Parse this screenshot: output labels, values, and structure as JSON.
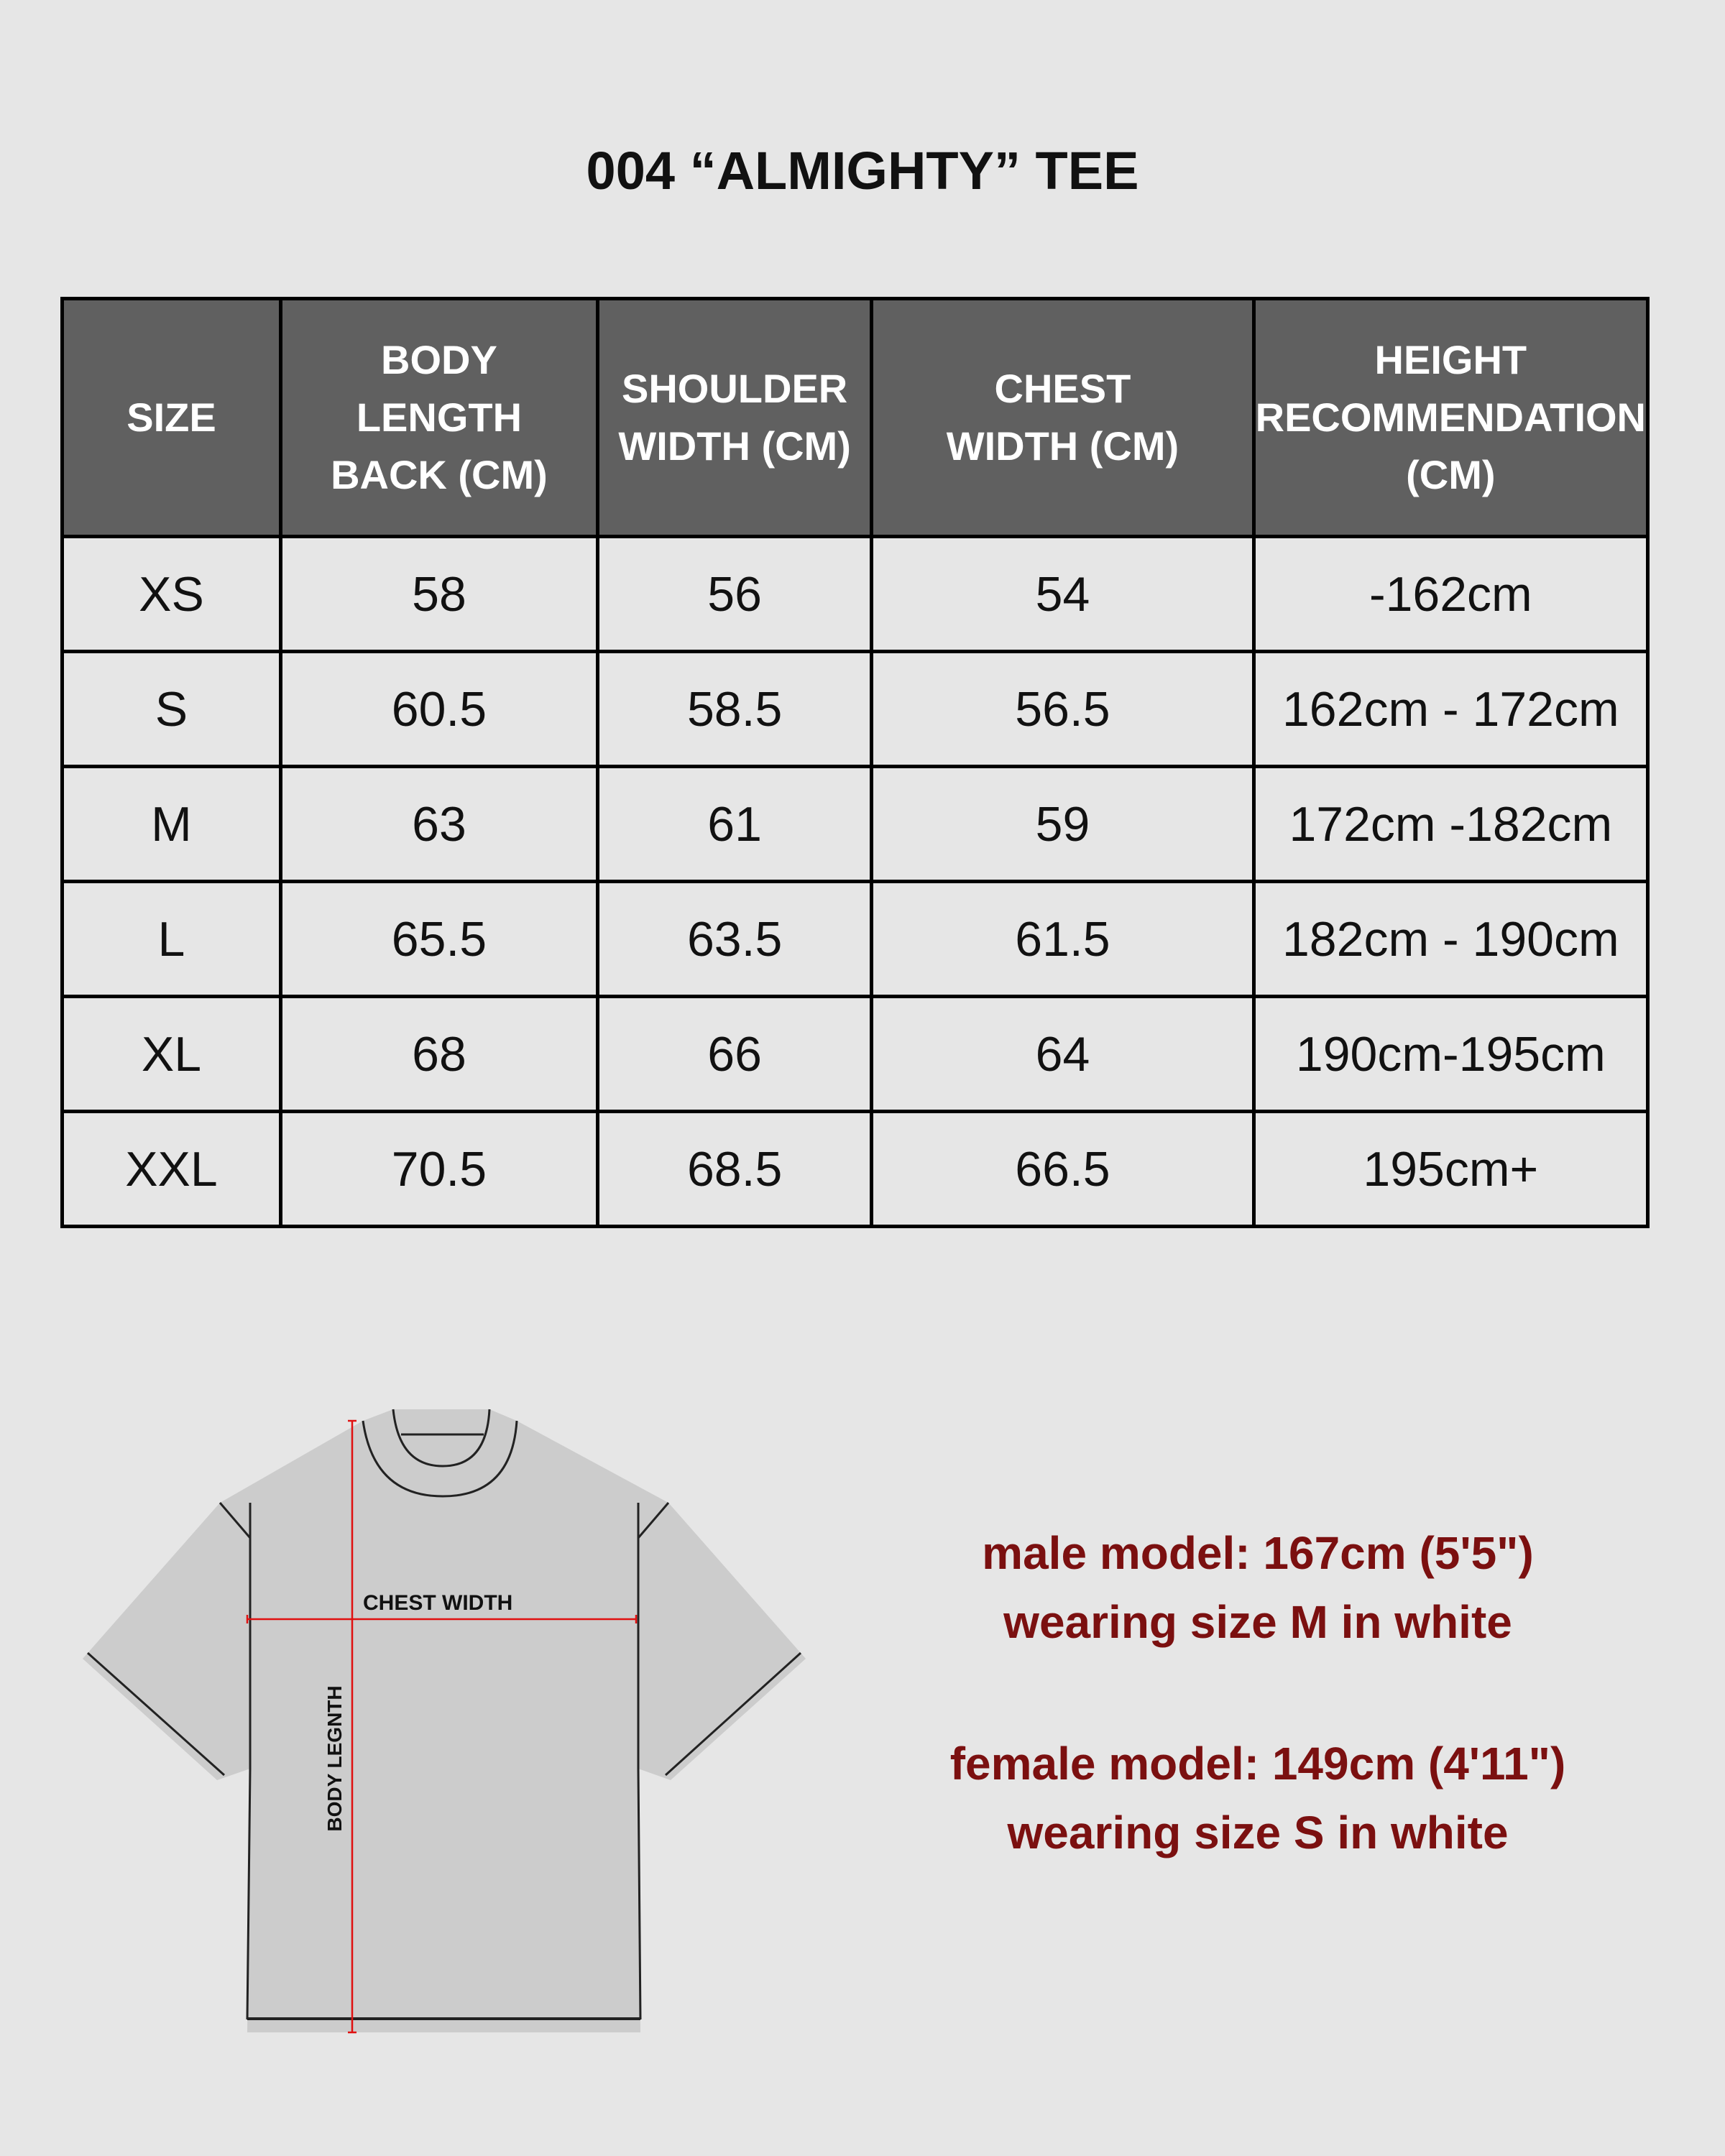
{
  "title": "004 “ALMIGHTY” TEE",
  "table": {
    "headers": [
      "SIZE",
      "BODY LENGTH BACK (CM)",
      "SHOULDER WIDTH (CM)",
      "CHEST WIDTH (CM)",
      "HEIGHT RECOMMENDATION (CM)"
    ],
    "rows": [
      [
        "XS",
        "58",
        "56",
        "54",
        "-162cm"
      ],
      [
        "S",
        "60.5",
        "58.5",
        "56.5",
        "162cm - 172cm"
      ],
      [
        "M",
        "63",
        "61",
        "59",
        "172cm -182cm"
      ],
      [
        "L",
        "65.5",
        "63.5",
        "61.5",
        "182cm - 190cm"
      ],
      [
        "XL",
        "68",
        "66",
        "64",
        "190cm-195cm"
      ],
      [
        "XXL",
        "70.5",
        "68.5",
        "66.5",
        "195cm+"
      ]
    ]
  },
  "diagram": {
    "chest_label": "CHEST WIDTH",
    "length_label": "BODY LEGNTH"
  },
  "models": {
    "male_line1": "male model: 167cm (5'5\")",
    "male_line2": "wearing size M in white",
    "female_line1": "female model: 149cm (4'11\")",
    "female_line2": "wearing size S in white"
  },
  "colors": {
    "background": "#e6e6e6",
    "header": "#606060",
    "note_text": "#7b1010",
    "measure_line": "#e01010"
  }
}
